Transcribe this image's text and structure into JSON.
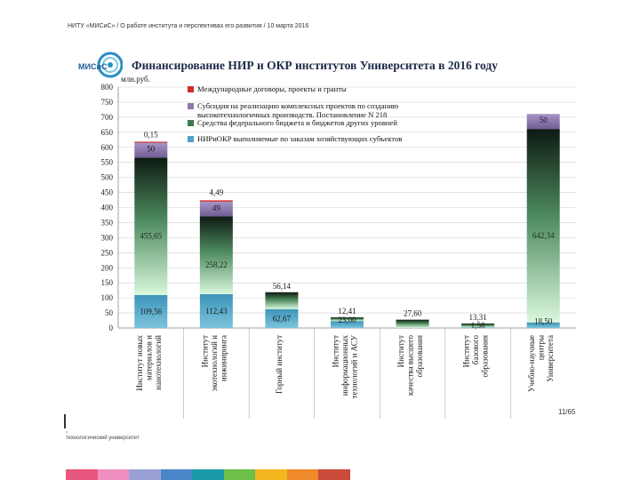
{
  "header": {
    "text": "НИТУ «МИСиС» / О работе института и перспективах его развития / 10 марта 2016"
  },
  "logo": {
    "text": "МИСиС"
  },
  "chart_data": {
    "type": "bar",
    "stacked": true,
    "title": "Финансирование НИР и ОКР институтов Университета в 2016  году",
    "ylabel": "млн.руб.",
    "ylim": [
      0,
      800
    ],
    "yticks": [
      0,
      50,
      100,
      150,
      200,
      250,
      300,
      350,
      400,
      450,
      500,
      550,
      600,
      650,
      700,
      750,
      800
    ],
    "grid": true,
    "legend_position": "top-center",
    "categories": [
      "Институт новых материалов и нанотехнологий",
      "Институт экотехнологий и инжиниринга",
      "Горный институт",
      "Институт информационных технологий и АСУ",
      "Институт качества высшего образования",
      "Институт базового образования",
      "Учебно-научные центры Университета"
    ],
    "series": [
      {
        "name": "НИРиОКР выполняемые по заказам хозяйствующих субъектов",
        "color": "#4fa3c4",
        "values": [
          109.56,
          112.43,
          62.67,
          23.0,
          0,
          1.58,
          18.5
        ],
        "labels": [
          "109,56",
          "112,43",
          "62,67",
          "23,00",
          "",
          "1,58",
          "18,50"
        ]
      },
      {
        "name": "Средства федерального бюджета и бюджетов других уровней",
        "color": "#3e7a4c",
        "values": [
          455.65,
          258.22,
          56.14,
          12.41,
          27.6,
          13.31,
          642.34
        ],
        "labels": [
          "455,65",
          "258,22",
          "56,14",
          "12,41",
          "27,60",
          "13,31",
          "642,34"
        ]
      },
      {
        "name": "Субсидия на реализацию комплексных проектов по созданию высокотехнологичных производств. Постановление N 218",
        "color": "#8d79ad",
        "values": [
          50,
          49,
          0,
          0,
          0,
          0,
          50
        ],
        "labels": [
          "50",
          "49",
          "",
          "",
          "",
          "",
          "50"
        ]
      },
      {
        "name": "Международные договоры, проекты и гранты",
        "color": "#d42a2a",
        "values": [
          0.15,
          4.49,
          0,
          0,
          0,
          0,
          0
        ],
        "labels": [
          "0,15",
          "4,49",
          "",
          "",
          "",
          "",
          ""
        ]
      }
    ]
  },
  "footer": {
    "page_number": "11/65",
    "mark": "›",
    "text": "технологический университет",
    "stripe_colors": [
      "#e8577d",
      "#ef8fc0",
      "#9aa0d6",
      "#4a87c9",
      "#1a9aa8",
      "#6cbf4a",
      "#f3b61f",
      "#ee8a2a",
      "#c94a3a"
    ]
  }
}
